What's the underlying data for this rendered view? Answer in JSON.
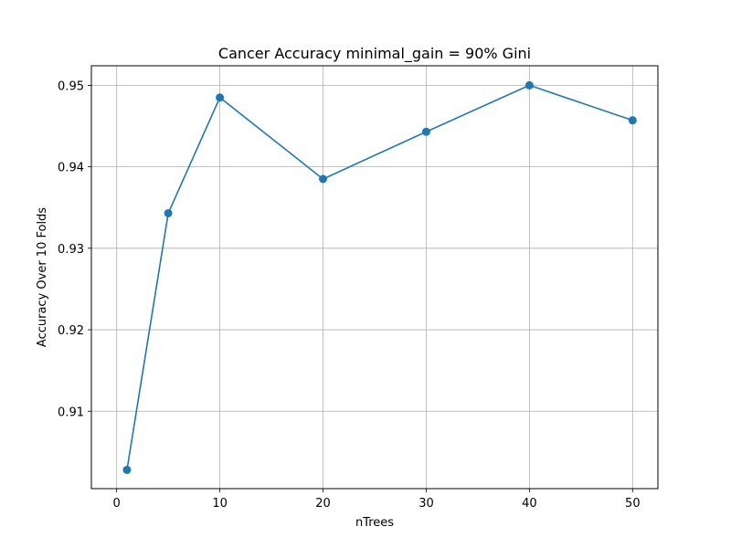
{
  "chart_data": {
    "type": "line",
    "title": "Cancer Accuracy minimal_gain = 90% Gini",
    "xlabel": "nTrees",
    "ylabel": "Accuracy Over 10 Folds",
    "xlim": [
      -2.45,
      52.45
    ],
    "ylim": [
      0.9005,
      0.9524
    ],
    "x_ticks": [
      0,
      10,
      20,
      30,
      40,
      50
    ],
    "y_ticks": [
      0.91,
      0.92,
      0.93,
      0.94,
      0.95
    ],
    "grid": true,
    "series": [
      {
        "x": [
          1,
          5,
          10,
          20,
          30,
          40,
          50
        ],
        "values": [
          0.9028,
          0.9343,
          0.9485,
          0.9385,
          0.9443,
          0.95,
          0.9457
        ],
        "color": "#1f77b4",
        "marker": "circle"
      }
    ]
  }
}
